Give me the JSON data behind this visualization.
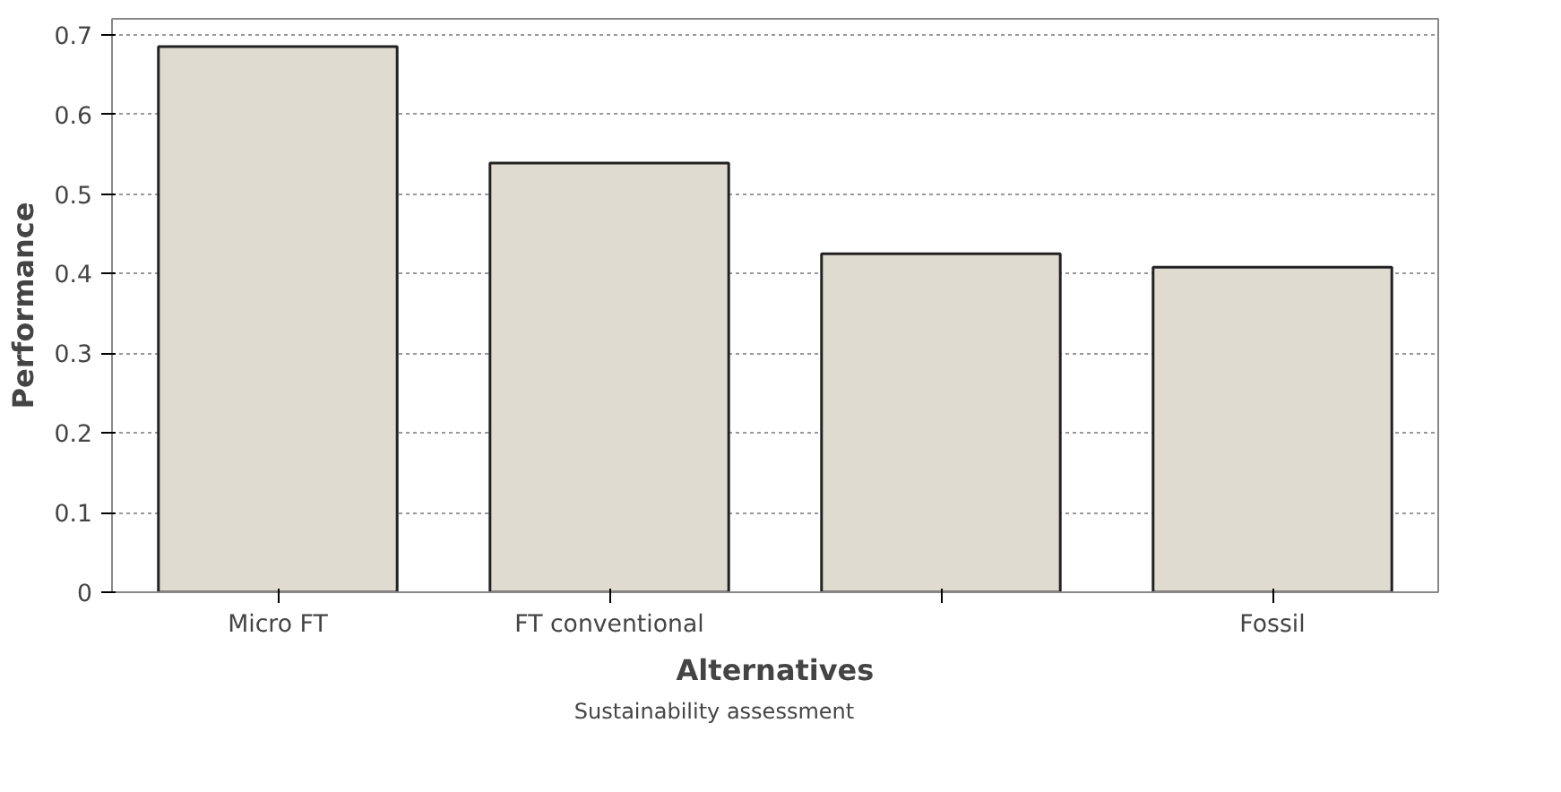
{
  "chart_data": {
    "type": "bar",
    "xlabel": "Alternatives",
    "ylabel": "Performance",
    "categories": [
      "Micro FT",
      "FT conventional",
      null,
      "Fossil"
    ],
    "series": [
      {
        "name": "Sustainability assessment",
        "color": "#e0dbd1",
        "values": [
          0.685,
          0.539,
          0.425,
          0.408
        ]
      }
    ],
    "ylim": [
      0,
      0.72
    ],
    "yticks": [
      0,
      0.1,
      0.2,
      0.3,
      0.4,
      0.5,
      0.6,
      0.7
    ],
    "grid": "y",
    "legend": "bottom"
  }
}
